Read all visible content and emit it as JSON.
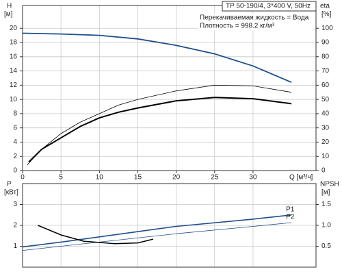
{
  "chart_data": [
    {
      "type": "line",
      "title": "TP 50-190/4, 3*400 V, 50Hz",
      "annotations": [
        "Перекачиваемая жидкость = Вода",
        "Плотность = 998.2 кг/м³"
      ],
      "ylabel": "H",
      "ylabel_unit": "[м]",
      "y2label": "eta",
      "y2label_unit": "[%]",
      "xlabel": "Q [м³/ч]",
      "xlim": [
        0,
        38.2
      ],
      "xticks": [
        0,
        5,
        10,
        15,
        20,
        25,
        30
      ],
      "ylim": [
        0,
        23.2
      ],
      "yticks": [
        0,
        2,
        4,
        6,
        8,
        10,
        12,
        14,
        16,
        18,
        20
      ],
      "y2lim": [
        0,
        116
      ],
      "y2ticks": [
        0,
        10,
        20,
        30,
        40,
        50,
        60,
        70,
        80,
        90,
        100
      ],
      "grid": true,
      "series": [
        {
          "color": "#1f4e8c",
          "line_width": 1.8,
          "x": [
            0,
            5,
            10,
            15,
            20,
            25,
            30,
            35
          ],
          "values": [
            19.3,
            19.2,
            19.0,
            18.5,
            17.6,
            16.4,
            14.7,
            12.4
          ]
        },
        {
          "color": "#000000",
          "line_width": 0.8,
          "axis": "y2",
          "x": [
            0.6,
            2.5,
            5,
            7.5,
            10,
            12.5,
            15,
            20,
            25,
            30,
            35
          ],
          "values": [
            4,
            15,
            26,
            34,
            40,
            46,
            50,
            56,
            60,
            59.5,
            55
          ]
        },
        {
          "color": "#000000",
          "line_width": 2,
          "axis": "y2",
          "x": [
            0.8,
            2.5,
            5,
            7.5,
            10,
            12.5,
            15,
            20,
            25,
            30,
            35
          ],
          "values": [
            6,
            15,
            23,
            31,
            37,
            41,
            44,
            49,
            51.4,
            50.5,
            47
          ]
        }
      ]
    },
    {
      "type": "line",
      "ylabel": "P",
      "ylabel_unit": "[кВт]",
      "y2label": "NPSH",
      "y2label_unit": "[м]",
      "xlim": [
        0,
        38.2
      ],
      "ylim": [
        0,
        4
      ],
      "yticks": [
        1,
        2,
        3
      ],
      "y2lim": [
        0,
        2
      ],
      "y2ticks": [
        0.5,
        {
          "value": 1,
          "label": "1.0"
        },
        1.5
      ],
      "grid": true,
      "series": [
        {
          "name": "P1",
          "color": "#1f4e8c",
          "line_width": 1.6,
          "x": [
            0,
            5,
            10,
            20,
            30,
            35
          ],
          "values": [
            0.97,
            1.2,
            1.45,
            1.95,
            2.3,
            2.5
          ]
        },
        {
          "name": "P2",
          "color": "#1f4e8c",
          "line_width": 0.8,
          "x": [
            0,
            10,
            20,
            30,
            35
          ],
          "values": [
            0.8,
            1.2,
            1.6,
            1.95,
            2.13
          ]
        },
        {
          "color": "#000000",
          "line_width": 1.5,
          "axis": "y2",
          "x": [
            2,
            5,
            8,
            12,
            15,
            17
          ],
          "values": [
            1.0,
            0.77,
            0.62,
            0.56,
            0.58,
            0.67
          ]
        }
      ]
    }
  ]
}
